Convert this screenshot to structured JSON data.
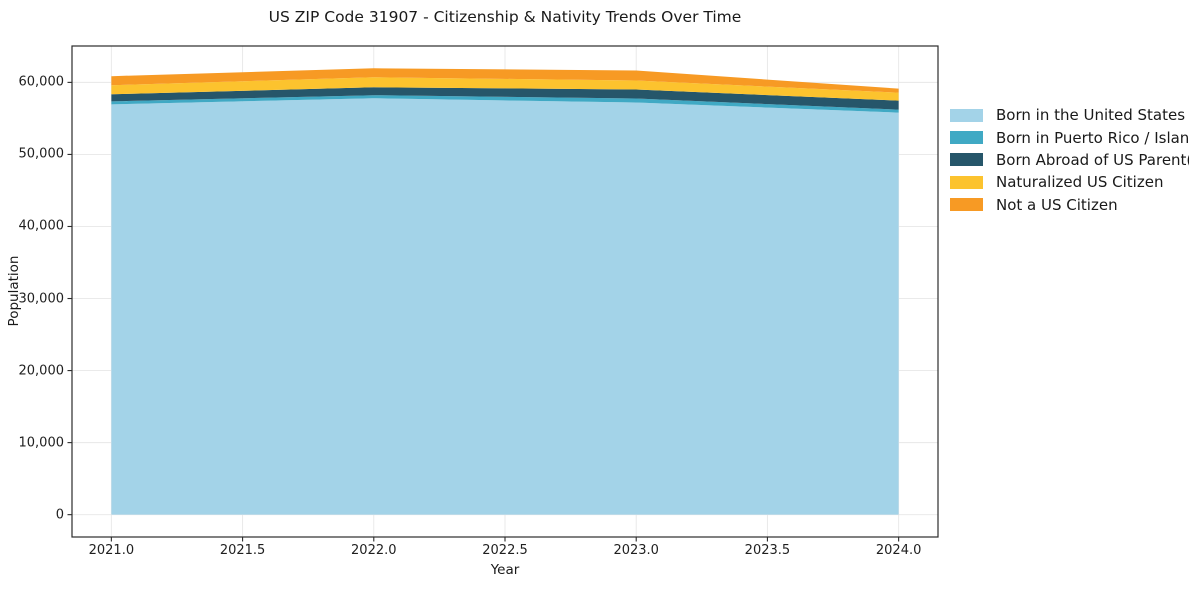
{
  "title": "US ZIP Code 31907 - Citizenship & Nativity Trends Over Time",
  "chart_data": {
    "type": "area",
    "stacked": true,
    "title": "US ZIP Code 31907 - Citizenship & Nativity Trends Over Time",
    "xlabel": "Year",
    "ylabel": "Population",
    "x": [
      2021.0,
      2022.0,
      2023.0,
      2024.0
    ],
    "series": [
      {
        "name": "Born in the United States",
        "color": "#a3d3e8",
        "values": [
          56950,
          57800,
          57200,
          55800
        ]
      },
      {
        "name": "Born in Puerto Rico / Islands",
        "color": "#40a9c4",
        "values": [
          420,
          420,
          560,
          420
        ]
      },
      {
        "name": "Born Abroad of US Parent(s)",
        "color": "#26566a",
        "values": [
          980,
          1100,
          1250,
          1250
        ]
      },
      {
        "name": "Naturalized US Citizen",
        "color": "#fcc32e",
        "values": [
          1260,
          1390,
          1250,
          1100
        ]
      },
      {
        "name": "Not a US Citizen",
        "color": "#f79a24",
        "values": [
          1250,
          1250,
          1390,
          560
        ]
      }
    ],
    "totals": [
      60860,
      61960,
      61650,
      59130
    ],
    "xlim": [
      2020.85,
      2024.15
    ],
    "ylim": [
      -3100,
      65050
    ],
    "xticks": {
      "values": [
        2021.0,
        2021.5,
        2022.0,
        2022.5,
        2023.0,
        2023.5,
        2024.0
      ],
      "labels": [
        "2021.0",
        "2021.5",
        "2022.0",
        "2022.5",
        "2023.0",
        "2023.5",
        "2024.0"
      ]
    },
    "yticks": {
      "values": [
        0,
        10000,
        20000,
        30000,
        40000,
        50000,
        60000
      ],
      "labels": [
        "0",
        "10,000",
        "20,000",
        "30,000",
        "40,000",
        "50,000",
        "60,000"
      ]
    },
    "grid": true,
    "legend_position": "right-outside"
  },
  "colors": {
    "spine": "#2b2b2b",
    "grid": "#e7e7e7",
    "background": "#ffffff"
  }
}
